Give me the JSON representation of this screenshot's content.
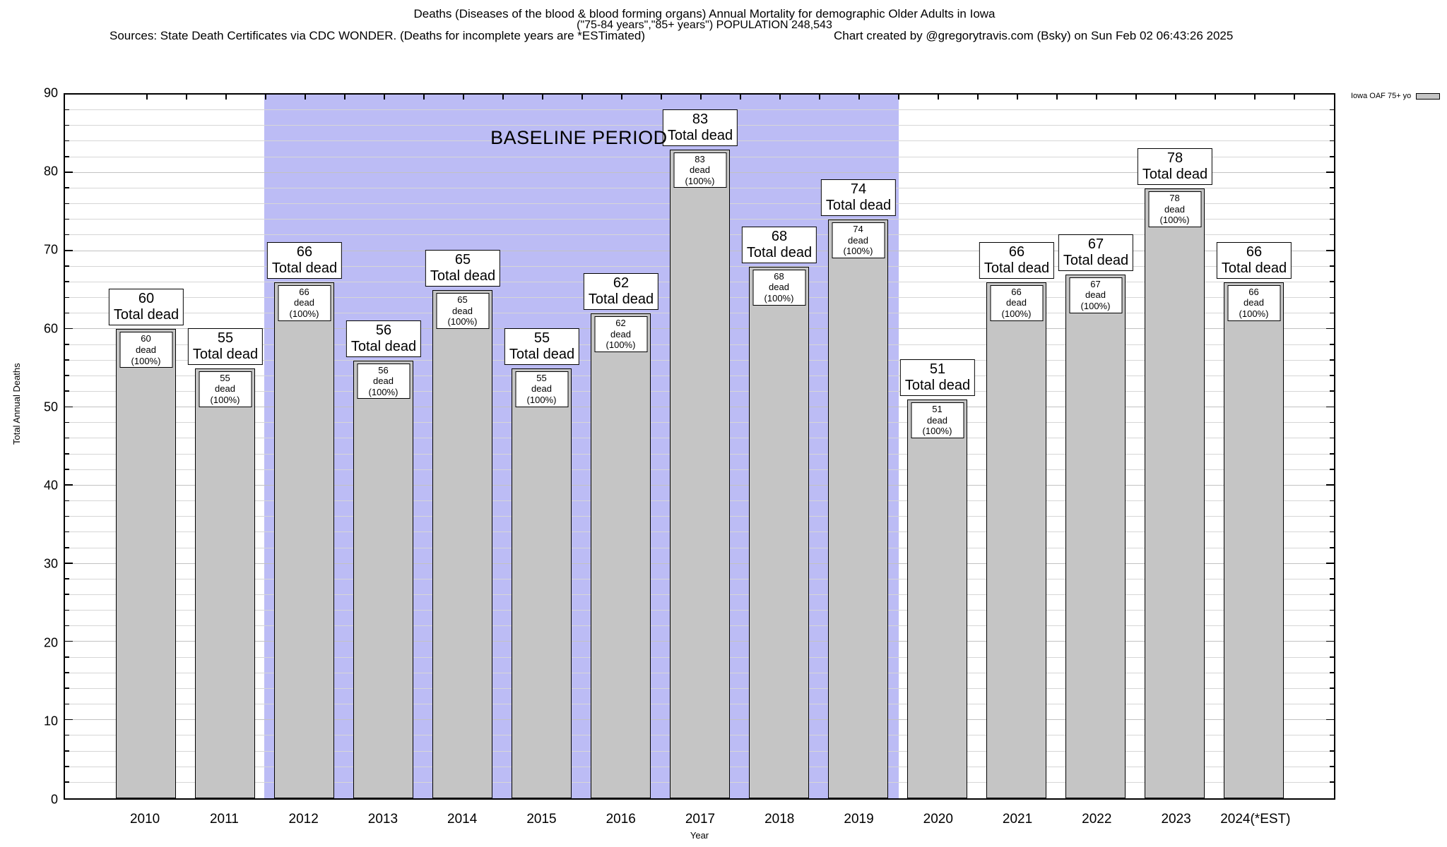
{
  "header": {
    "title_line1": "Deaths (Diseases of the blood & blood forming organs) Annual Mortality for demographic Older Adults in Iowa",
    "title_line2": "(\"75-84 years\",\"85+ years\") POPULATION 248,543",
    "sources": "Sources: State Death Certificates via CDC WONDER. (Deaths for incomplete years are *ESTimated)",
    "credit": "Chart created by @gregorytravis.com (Bsky) on Sun Feb 02 06:43:26 2025"
  },
  "legend": {
    "label": "Iowa OAF 75+ yo"
  },
  "axes": {
    "y_title": "Total Annual Deaths",
    "x_title": "Year",
    "y_major_ticks": [
      0,
      10,
      20,
      30,
      40,
      50,
      60,
      70,
      80,
      90
    ],
    "y_minor_step": 2,
    "ylim": [
      0,
      90
    ]
  },
  "baseline": {
    "label": "BASELINE PERIOD"
  },
  "bar_labels": {
    "big_caption": "Total dead",
    "small_caption": "dead (100%)"
  },
  "colors": {
    "bar_fill": "#c5c5c5",
    "bar_border": "#000000",
    "baseline_band": "#bcbcf5",
    "grid_minor": "#d6d6d6",
    "grid_major": "#c2c2c2",
    "label_box_bg": "#ffffff"
  },
  "chart_data": {
    "type": "bar",
    "title": "Deaths (Diseases of the blood & blood forming organs) Annual Mortality for demographic Older Adults in Iowa",
    "subtitle": "(\"75-84 years\",\"85+ years\") POPULATION 248,543",
    "categories": [
      "2010",
      "2011",
      "2012",
      "2013",
      "2014",
      "2015",
      "2016",
      "2017",
      "2018",
      "2019",
      "2020",
      "2021",
      "2022",
      "2023",
      "2024(*EST)"
    ],
    "series": [
      {
        "name": "Iowa OAF 75+ yo",
        "values": [
          60,
          55,
          66,
          56,
          65,
          55,
          62,
          83,
          68,
          74,
          51,
          66,
          67,
          78,
          66
        ]
      }
    ],
    "xlabel": "Year",
    "ylabel": "Total Annual Deaths",
    "ylim": [
      0,
      90
    ],
    "grid": true,
    "legend_position": "top-right",
    "annotations": [
      {
        "type": "band",
        "label": "BASELINE PERIOD",
        "x_start": "2012",
        "x_end": "2019"
      }
    ],
    "bar_label_above_template": "{value} Total dead",
    "bar_label_inside_template": "{value} dead (100%)"
  }
}
